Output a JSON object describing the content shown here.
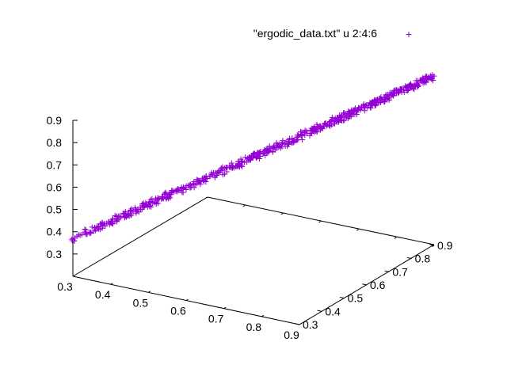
{
  "chart_data": {
    "type": "scatter",
    "plot_style": "3d",
    "title": "",
    "legend": {
      "label": "\"ergodic_data.txt\" u 2:4:6",
      "marker": "+",
      "position": "top-right"
    },
    "color": "#9400d3",
    "grid": false,
    "x_axis": {
      "range": [
        0.3,
        0.9
      ],
      "ticks": [
        "0.3",
        "0.4",
        "0.5",
        "0.6",
        "0.7",
        "0.8",
        "0.9"
      ]
    },
    "y_axis": {
      "range": [
        0.3,
        0.9
      ],
      "ticks": [
        "0.3",
        "0.4",
        "0.5",
        "0.6",
        "0.7",
        "0.8",
        "0.9"
      ]
    },
    "z_axis": {
      "range": [
        0.2,
        0.9
      ],
      "ticks": [
        "0.3",
        "0.4",
        "0.5",
        "0.6",
        "0.7",
        "0.8",
        "0.9"
      ]
    },
    "trend": {
      "start": {
        "x": 0.3,
        "y": 0.3,
        "z": 0.37
      },
      "end": {
        "x": 0.9,
        "y": 0.9,
        "z": 0.96
      }
    },
    "x": [
      0.3,
      0.32,
      0.34,
      0.36,
      0.38,
      0.4,
      0.42,
      0.44,
      0.46,
      0.48,
      0.5,
      0.52,
      0.54,
      0.56,
      0.58,
      0.6,
      0.62,
      0.64,
      0.66,
      0.68,
      0.7,
      0.72,
      0.74,
      0.76,
      0.78,
      0.8,
      0.82,
      0.84,
      0.86,
      0.88,
      0.9
    ],
    "y": [
      0.3,
      0.32,
      0.34,
      0.36,
      0.38,
      0.4,
      0.42,
      0.44,
      0.46,
      0.48,
      0.5,
      0.52,
      0.54,
      0.56,
      0.58,
      0.6,
      0.62,
      0.64,
      0.66,
      0.68,
      0.7,
      0.72,
      0.74,
      0.76,
      0.78,
      0.8,
      0.82,
      0.84,
      0.86,
      0.88,
      0.9
    ],
    "z": [
      0.37,
      0.39,
      0.41,
      0.43,
      0.45,
      0.47,
      0.49,
      0.51,
      0.53,
      0.55,
      0.57,
      0.59,
      0.61,
      0.63,
      0.65,
      0.67,
      0.69,
      0.71,
      0.73,
      0.75,
      0.77,
      0.79,
      0.81,
      0.83,
      0.85,
      0.87,
      0.89,
      0.91,
      0.93,
      0.95,
      0.96
    ]
  }
}
